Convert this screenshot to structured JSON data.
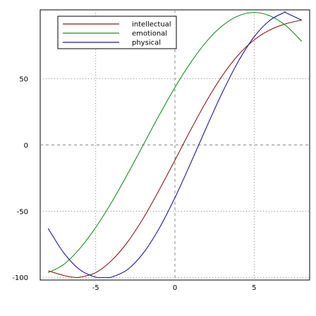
{
  "chart_data": {
    "type": "line",
    "xlim": [
      -8.5,
      8.5
    ],
    "ylim": [
      -102,
      102
    ],
    "grid": true,
    "zero_lines": true,
    "legend_position": "top-left",
    "x_ticks": [
      -5,
      0,
      5
    ],
    "x_tick_labels": [
      "-5",
      "0",
      "5"
    ],
    "y_ticks": [
      -100,
      -50,
      0,
      50
    ],
    "y_tick_labels": [
      "-100",
      "-50",
      "0",
      "50"
    ],
    "series": [
      {
        "name": "intellectual",
        "color": "#8b1a1a",
        "x": [
          -8,
          -7,
          -6.3,
          -6,
          -5,
          -4,
          -3,
          -2,
          -1,
          0,
          1,
          2,
          3,
          4,
          5,
          6,
          7,
          8
        ],
        "y": [
          -95,
          -98.6,
          -100,
          -99.9,
          -96.4,
          -87.3,
          -73.5,
          -55.4,
          -34.1,
          -11.5,
          11.5,
          33.3,
          52.5,
          68.0,
          79.3,
          86.9,
          91.5,
          94.3
        ]
      },
      {
        "name": "emotional",
        "color": "#1a8f1a",
        "x": [
          -8,
          -7,
          -6,
          -5,
          -4,
          -3,
          -2,
          -1,
          0,
          1,
          2,
          3,
          4,
          5,
          6,
          7,
          8
        ],
        "y": [
          -96.4,
          -90.1,
          -78.2,
          -62.3,
          -43.4,
          -22.3,
          0.0,
          22.3,
          43.4,
          62.3,
          78.2,
          90.1,
          97.5,
          100.0,
          97.5,
          90.1,
          78.2
        ]
      },
      {
        "name": "physical",
        "color": "#1a1a9b",
        "x": [
          -8,
          -7,
          -6,
          -5,
          -4.4,
          -4,
          -3,
          -2,
          -1,
          0,
          1,
          2,
          3,
          4,
          5,
          6,
          6.9,
          7,
          8
        ],
        "y": [
          -63.1,
          -81.7,
          -94.2,
          -99.8,
          -100,
          -99.8,
          -94.2,
          -81.7,
          -63.1,
          -39.8,
          -13.6,
          13.6,
          39.8,
          63.1,
          81.7,
          94.2,
          100,
          99.8,
          94.2
        ]
      }
    ]
  }
}
